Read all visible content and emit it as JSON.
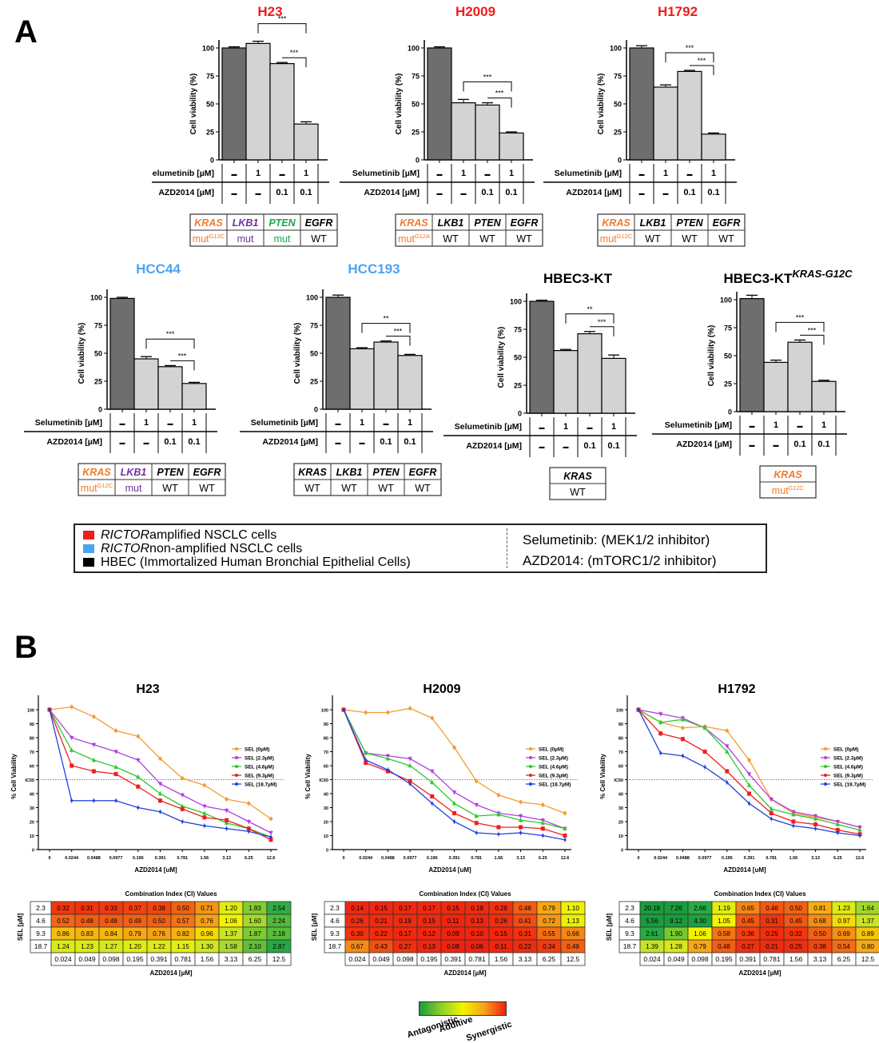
{
  "panel_labels": {
    "a": "A",
    "b": "B"
  },
  "colors": {
    "rictor_amplified": "#ee1c1c",
    "rictor_non_amplified": "#4da3f0",
    "hbec": "#000000",
    "bar_control": "#6e6e6e",
    "bar_treated": "#d3d3d3",
    "kras": "#f07b2a",
    "lkb1": "#7030a0",
    "pten": "#18a84c",
    "sel_0": "#f39c34",
    "sel_2_3": "#b040e0",
    "sel_4_6": "#2ec82e",
    "sel_9_3": "#ee2020",
    "sel_18_7": "#2040e0"
  },
  "treatment_rows": {
    "selumetinib_label": "Selumetinib [µM]",
    "azd_label": "AZD2014 [µM]",
    "selumetinib": [
      "-",
      "1",
      "-",
      "1"
    ],
    "azd": [
      "-",
      "-",
      "0.1",
      "0.1"
    ]
  },
  "legend": {
    "items": [
      {
        "italic": "RICTOR",
        "text": " amplified NSCLC cells",
        "color": "#ee1c1c"
      },
      {
        "italic": "RICTOR",
        "text": " non-amplified NSCLC cells",
        "color": "#4da3f0"
      },
      {
        "italic": "",
        "text": "HBEC (Immortalized Human Bronchial Epithelial Cells)",
        "color": "#000000"
      }
    ],
    "drug1": "Selumetinib: (MEK1/2 inhibitor)",
    "drug2": "AZD2014: (mTORC1/2 inhibitor)"
  },
  "ci_legend": {
    "antagonistic": "Antagonistic",
    "additive": "Additive",
    "synergistic": "Synergistic"
  },
  "chart_data": [
    {
      "type": "bar",
      "title": "H23",
      "title_color": "#ee1c1c",
      "ylabel": "Cell viability (%)",
      "ylim": [
        0,
        100
      ],
      "yticks": [
        0,
        25,
        50,
        75,
        100
      ],
      "categories": [
        "control",
        "Sel 1",
        "AZD 0.1",
        "Sel 1 + AZD 0.1"
      ],
      "values": [
        100,
        104,
        86,
        32
      ],
      "errors": [
        1,
        2,
        1,
        2
      ],
      "significance": [
        {
          "from": 1,
          "to": 3,
          "label": "***"
        },
        {
          "from": 2,
          "to": 3,
          "label": "***"
        }
      ],
      "genotype": {
        "headers": [
          "KRAS",
          "LKB1",
          "PTEN",
          "EGFR"
        ],
        "values": [
          "mut",
          "mut",
          "mut",
          "WT"
        ],
        "sup": [
          "G12C",
          "",
          "",
          ""
        ],
        "colored": [
          true,
          true,
          true,
          false
        ]
      }
    },
    {
      "type": "bar",
      "title": "H2009",
      "title_color": "#ee1c1c",
      "ylabel": "Cell viability (%)",
      "ylim": [
        0,
        100
      ],
      "yticks": [
        0,
        25,
        50,
        75,
        100
      ],
      "categories": [
        "control",
        "Sel 1",
        "AZD 0.1",
        "Sel 1 + AZD 0.1"
      ],
      "values": [
        100,
        51,
        49,
        24
      ],
      "errors": [
        1,
        3,
        2,
        1
      ],
      "significance": [
        {
          "from": 1,
          "to": 3,
          "label": "***"
        },
        {
          "from": 2,
          "to": 3,
          "label": "***"
        }
      ],
      "genotype": {
        "headers": [
          "KRAS",
          "LKB1",
          "PTEN",
          "EGFR"
        ],
        "values": [
          "mut",
          "WT",
          "WT",
          "WT"
        ],
        "sup": [
          "G12A",
          "",
          "",
          ""
        ],
        "colored": [
          true,
          false,
          false,
          false
        ]
      }
    },
    {
      "type": "bar",
      "title": "H1792",
      "title_color": "#ee1c1c",
      "ylabel": "Cell viability (%)",
      "ylim": [
        0,
        100
      ],
      "yticks": [
        0,
        25,
        50,
        75,
        100
      ],
      "categories": [
        "control",
        "Sel 1",
        "AZD 0.1",
        "Sel 1 + AZD 0.1"
      ],
      "values": [
        100,
        65,
        79,
        23
      ],
      "errors": [
        2,
        2,
        1,
        1
      ],
      "significance": [
        {
          "from": 1,
          "to": 3,
          "label": "***"
        },
        {
          "from": 2,
          "to": 3,
          "label": "***"
        }
      ],
      "genotype": {
        "headers": [
          "KRAS",
          "LKB1",
          "PTEN",
          "EGFR"
        ],
        "values": [
          "mut",
          "WT",
          "WT",
          "WT"
        ],
        "sup": [
          "G12C",
          "",
          "",
          ""
        ],
        "colored": [
          true,
          false,
          false,
          false
        ]
      }
    },
    {
      "type": "bar",
      "title": "HCC44",
      "title_color": "#4da3f0",
      "ylabel": "Cell viability (%)",
      "ylim": [
        0,
        100
      ],
      "yticks": [
        0,
        25,
        50,
        75,
        100
      ],
      "categories": [
        "control",
        "Sel 1",
        "AZD 0.1",
        "Sel 1 + AZD 0.1"
      ],
      "values": [
        99,
        45,
        38,
        23
      ],
      "errors": [
        1,
        2,
        1,
        1
      ],
      "significance": [
        {
          "from": 1,
          "to": 3,
          "label": "***"
        },
        {
          "from": 2,
          "to": 3,
          "label": "***"
        }
      ],
      "genotype": {
        "headers": [
          "KRAS",
          "LKB1",
          "PTEN",
          "EGFR"
        ],
        "values": [
          "mut",
          "mut",
          "WT",
          "WT"
        ],
        "sup": [
          "G12C",
          "",
          "",
          ""
        ],
        "colored": [
          true,
          true,
          false,
          false
        ]
      }
    },
    {
      "type": "bar",
      "title": "HCC193",
      "title_color": "#4da3f0",
      "ylabel": "Cell viability (%)",
      "ylim": [
        0,
        100
      ],
      "yticks": [
        0,
        25,
        50,
        75,
        100
      ],
      "categories": [
        "control",
        "Sel 1",
        "AZD 0.1",
        "Sel 1 + AZD 0.1"
      ],
      "values": [
        100,
        54,
        60,
        48
      ],
      "errors": [
        2,
        1,
        1,
        1
      ],
      "significance": [
        {
          "from": 1,
          "to": 3,
          "label": "**"
        },
        {
          "from": 2,
          "to": 3,
          "label": "***"
        }
      ],
      "genotype": {
        "headers": [
          "KRAS",
          "LKB1",
          "PTEN",
          "EGFR"
        ],
        "values": [
          "WT",
          "WT",
          "WT",
          "WT"
        ],
        "sup": [
          "",
          "",
          "",
          ""
        ],
        "colored": [
          false,
          false,
          false,
          false
        ]
      }
    },
    {
      "type": "bar",
      "title": "HBEC3-KT",
      "title_sup": "",
      "title_color": "#000000",
      "ylabel": "Cell viability (%)",
      "ylim": [
        0,
        100
      ],
      "yticks": [
        0,
        25,
        50,
        75,
        100
      ],
      "categories": [
        "control",
        "Sel 1",
        "AZD 0.1",
        "Sel 1 + AZD 0.1"
      ],
      "values": [
        100,
        56,
        71,
        49
      ],
      "errors": [
        1,
        1,
        2,
        3
      ],
      "significance": [
        {
          "from": 1,
          "to": 3,
          "label": "**"
        },
        {
          "from": 2,
          "to": 3,
          "label": "***"
        }
      ],
      "genotype": {
        "headers": [
          "KRAS"
        ],
        "values": [
          "WT"
        ],
        "sup": [
          ""
        ],
        "colored": [
          false
        ]
      }
    },
    {
      "type": "bar",
      "title": "HBEC3-KT",
      "title_sup": "KRAS-G12C",
      "title_color": "#000000",
      "ylabel": "Cell viability (%)",
      "ylim": [
        0,
        100
      ],
      "yticks": [
        0,
        25,
        50,
        75,
        100
      ],
      "categories": [
        "control",
        "Sel 1",
        "AZD 0.1",
        "Sel 1 + AZD 0.1"
      ],
      "values": [
        101,
        44,
        62,
        27
      ],
      "errors": [
        3,
        2,
        2,
        1
      ],
      "significance": [
        {
          "from": 1,
          "to": 3,
          "label": "***"
        },
        {
          "from": 2,
          "to": 3,
          "label": "***"
        }
      ],
      "genotype": {
        "headers": [
          "KRAS"
        ],
        "values": [
          "mut"
        ],
        "sup": [
          "G12C"
        ],
        "colored": [
          true
        ]
      }
    },
    {
      "type": "line",
      "title": "H23",
      "xlabel": "AZD2014 [uM]",
      "ylabel": "% Cell Viability",
      "ylim": [
        0,
        100
      ],
      "yticks": [
        0,
        10,
        20,
        30,
        40,
        "IC50",
        60,
        70,
        80,
        90,
        100
      ],
      "ic50": 50,
      "x": [
        "0",
        "0.0244",
        "0.0488",
        "0.0977",
        "0.196",
        "0.391",
        "0.781",
        "1.56",
        "3.13",
        "6.25",
        "12.6"
      ],
      "series": [
        {
          "name": "SEL (0µM)",
          "values": [
            100,
            102,
            95,
            85,
            81,
            65,
            51,
            46,
            36,
            33,
            22
          ]
        },
        {
          "name": "SEL (2.3µM)",
          "values": [
            100,
            80,
            75,
            70,
            64,
            47,
            39,
            31,
            28,
            20,
            12
          ]
        },
        {
          "name": "SEL (4.6µM)",
          "values": [
            100,
            71,
            64,
            59,
            52,
            40,
            31,
            26,
            19,
            15,
            9
          ]
        },
        {
          "name": "SEL (9.3µM)",
          "values": [
            100,
            60,
            56,
            54,
            45,
            35,
            29,
            23,
            21,
            15,
            7
          ]
        },
        {
          "name": "SEL (18.7µM)",
          "values": [
            100,
            35,
            35,
            35,
            30,
            27,
            20,
            17,
            15,
            13,
            9
          ]
        }
      ],
      "ci_table": {
        "title": "Combination Index (CI) Values",
        "row_label": "SEL [µM]",
        "col_label": "AZD2014 [µM]",
        "rows": [
          "2.3",
          "4.6",
          "9.3",
          "18.7"
        ],
        "cols": [
          "0.024",
          "0.049",
          "0.098",
          "0.195",
          "0.391",
          "0.781",
          "1.56",
          "3.13",
          "6.25",
          "12.5"
        ],
        "values": [
          [
            0.32,
            0.31,
            0.33,
            0.37,
            0.38,
            0.5,
            0.71,
            1.2,
            1.83,
            2.54
          ],
          [
            0.52,
            0.48,
            0.48,
            0.49,
            0.5,
            0.57,
            0.76,
            1.06,
            1.6,
            2.24
          ],
          [
            0.86,
            0.83,
            0.84,
            0.79,
            0.76,
            0.82,
            0.96,
            1.37,
            1.87,
            2.18
          ],
          [
            1.24,
            1.23,
            1.27,
            1.2,
            1.22,
            1.15,
            1.3,
            1.58,
            2.1,
            2.87
          ]
        ]
      }
    },
    {
      "type": "line",
      "title": "H2009",
      "xlabel": "AZD2014 [uM]",
      "ylabel": "% Cell Viability",
      "ylim": [
        0,
        100
      ],
      "yticks": [
        0,
        10,
        20,
        30,
        40,
        "IC50",
        60,
        70,
        80,
        90,
        100
      ],
      "ic50": 50,
      "x": [
        "0",
        "0.0244",
        "0.0488",
        "0.0977",
        "0.196",
        "0.391",
        "0.781",
        "1.56",
        "3.13",
        "6.25",
        "12.6"
      ],
      "series": [
        {
          "name": "SEL (0µM)",
          "values": [
            100,
            98,
            98,
            101,
            94,
            73,
            49,
            39,
            34,
            32,
            26
          ]
        },
        {
          "name": "SEL (2.3µM)",
          "values": [
            100,
            69,
            67,
            65,
            56,
            41,
            32,
            26,
            24,
            21,
            15
          ]
        },
        {
          "name": "SEL (4.6µM)",
          "values": [
            100,
            69,
            65,
            60,
            48,
            33,
            24,
            25,
            21,
            19,
            15
          ]
        },
        {
          "name": "SEL (9.3µM)",
          "values": [
            100,
            62,
            56,
            49,
            38,
            26,
            19,
            16,
            16,
            15,
            10
          ]
        },
        {
          "name": "SEL (18.7µM)",
          "values": [
            100,
            64,
            57,
            47,
            33,
            20,
            12,
            11,
            12,
            10,
            7
          ]
        }
      ],
      "ci_table": {
        "title": "Combination Index (CI) Values",
        "row_label": "SEL [µM]",
        "col_label": "AZD2014 [µM]",
        "rows": [
          "2.3",
          "4.6",
          "9.3",
          "18.7"
        ],
        "cols": [
          "0.024",
          "0.049",
          "0.098",
          "0.195",
          "0.391",
          "0.781",
          "1.56",
          "3.13",
          "6.25",
          "12.5"
        ],
        "values": [
          [
            0.14,
            0.15,
            0.17,
            0.17,
            0.15,
            0.19,
            0.28,
            0.48,
            0.79,
            1.1
          ],
          [
            0.26,
            0.21,
            0.19,
            0.15,
            0.11,
            0.13,
            0.26,
            0.41,
            0.72,
            1.13
          ],
          [
            0.3,
            0.22,
            0.17,
            0.12,
            0.09,
            0.1,
            0.15,
            0.31,
            0.55,
            0.66
          ],
          [
            0.67,
            0.43,
            0.27,
            0.13,
            0.08,
            0.06,
            0.11,
            0.22,
            0.34,
            0.49
          ]
        ]
      }
    },
    {
      "type": "line",
      "title": "H1792",
      "xlabel": "AZD2014 [uM]",
      "ylabel": "% Cell Viability",
      "ylim": [
        0,
        100
      ],
      "yticks": [
        0,
        10,
        20,
        30,
        40,
        "IC50",
        60,
        70,
        80,
        90,
        100
      ],
      "ic50": 50,
      "x": [
        "0",
        "0.0244",
        "0.0488",
        "0.0977",
        "0.196",
        "0.391",
        "0.781",
        "1.56",
        "3.13",
        "6.25",
        "12.6"
      ],
      "series": [
        {
          "name": "SEL (0µM)",
          "values": [
            100,
            91,
            87,
            88,
            85,
            64,
            36,
            26,
            23,
            20,
            16
          ]
        },
        {
          "name": "SEL (2.3µM)",
          "values": [
            100,
            97,
            94,
            87,
            74,
            54,
            36,
            27,
            24,
            20,
            16
          ]
        },
        {
          "name": "SEL (4.6µM)",
          "values": [
            100,
            91,
            93,
            87,
            70,
            46,
            29,
            25,
            22,
            18,
            14
          ]
        },
        {
          "name": "SEL (9.3µM)",
          "values": [
            100,
            83,
            79,
            70,
            56,
            40,
            26,
            20,
            18,
            14,
            11
          ]
        },
        {
          "name": "SEL (18.7µM)",
          "values": [
            100,
            69,
            67,
            59,
            48,
            33,
            22,
            17,
            15,
            12,
            10
          ]
        }
      ],
      "ci_table": {
        "title": "Combination Index (CI) Values",
        "row_label": "SEL [µM]",
        "col_label": "AZD2014 [µM]",
        "rows": [
          "2.3",
          "4.6",
          "9.3",
          "18.7"
        ],
        "cols": [
          "0.024",
          "0.049",
          "0.098",
          "0.195",
          "0.391",
          "0.781",
          "1.56",
          "3.13",
          "6.25",
          "12.5"
        ],
        "values": [
          [
            20.18,
            7.26,
            2.66,
            1.19,
            0.65,
            0.46,
            0.5,
            0.81,
            1.23,
            1.64
          ],
          [
            5.56,
            9.12,
            4.3,
            1.05,
            0.45,
            0.31,
            0.45,
            0.68,
            0.97,
            1.37
          ],
          [
            2.61,
            1.9,
            1.06,
            0.58,
            0.36,
            0.25,
            0.32,
            0.5,
            0.69,
            0.89
          ],
          [
            1.39,
            1.28,
            0.79,
            0.48,
            0.27,
            0.21,
            0.25,
            0.38,
            0.54,
            0.8
          ]
        ]
      }
    }
  ]
}
